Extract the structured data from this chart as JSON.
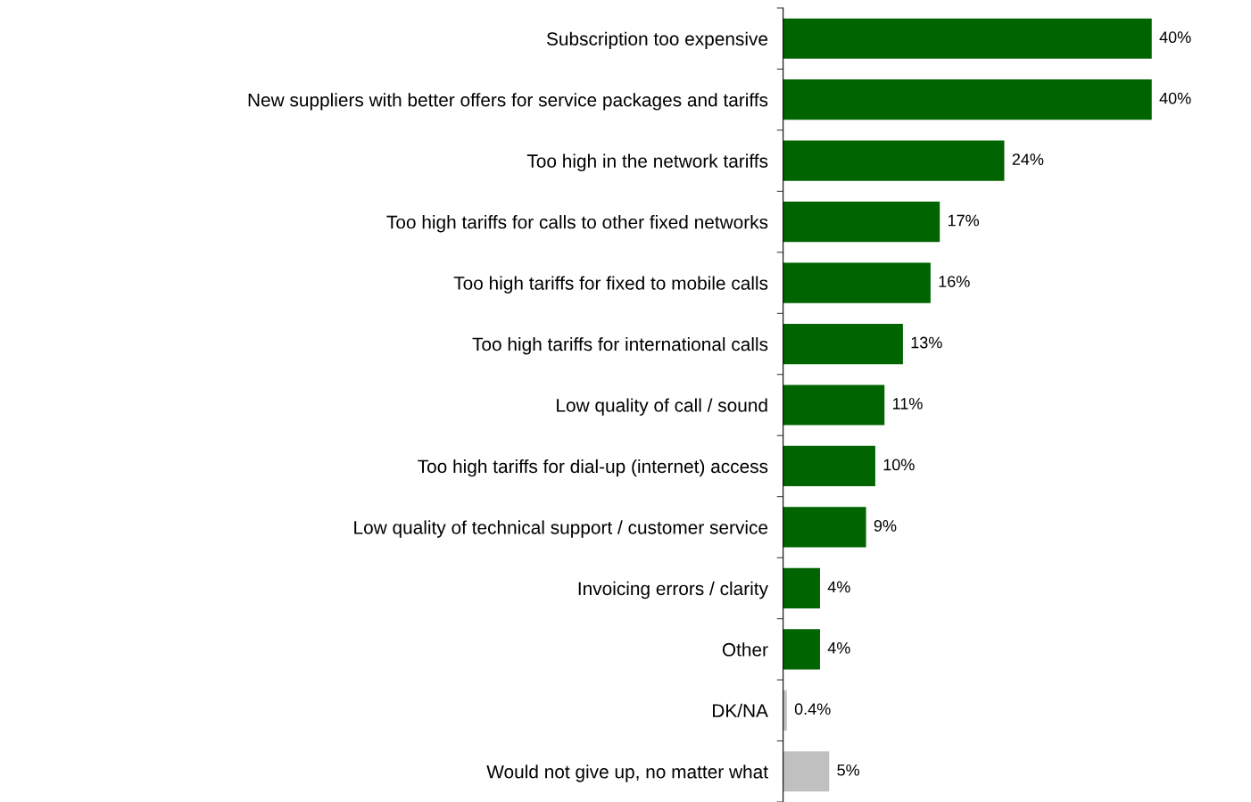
{
  "chart_data": {
    "type": "bar",
    "orientation": "horizontal",
    "categories": [
      "Subscription too expensive",
      "New suppliers with better offers for service packages and tariffs",
      "Too high in the network tariffs",
      "Too high tariffs for calls to other fixed networks",
      "Too high tariffs for fixed to mobile calls",
      "Too high tariffs for international calls",
      "Low quality of call / sound",
      "Too high tariffs for dial-up (internet) access",
      "Low quality of technical support / customer service",
      "Invoicing errors / clarity",
      "Other",
      "DK/NA",
      "Would not give up, no matter what"
    ],
    "values": [
      40,
      40,
      24,
      17,
      16,
      13,
      11,
      10,
      9,
      4,
      4,
      0.4,
      5
    ],
    "colors": [
      "#006400",
      "#006400",
      "#006400",
      "#006400",
      "#006400",
      "#006400",
      "#006400",
      "#006400",
      "#006400",
      "#006400",
      "#006400",
      "#c0c0c0",
      "#c0c0c0"
    ],
    "value_labels": [
      "40%",
      "40%",
      "24%",
      "17%",
      "16%",
      "13%",
      "11%",
      "10%",
      "9%",
      "4%",
      "4%",
      "0.4%",
      "5%"
    ],
    "grid": false,
    "legend": false
  }
}
